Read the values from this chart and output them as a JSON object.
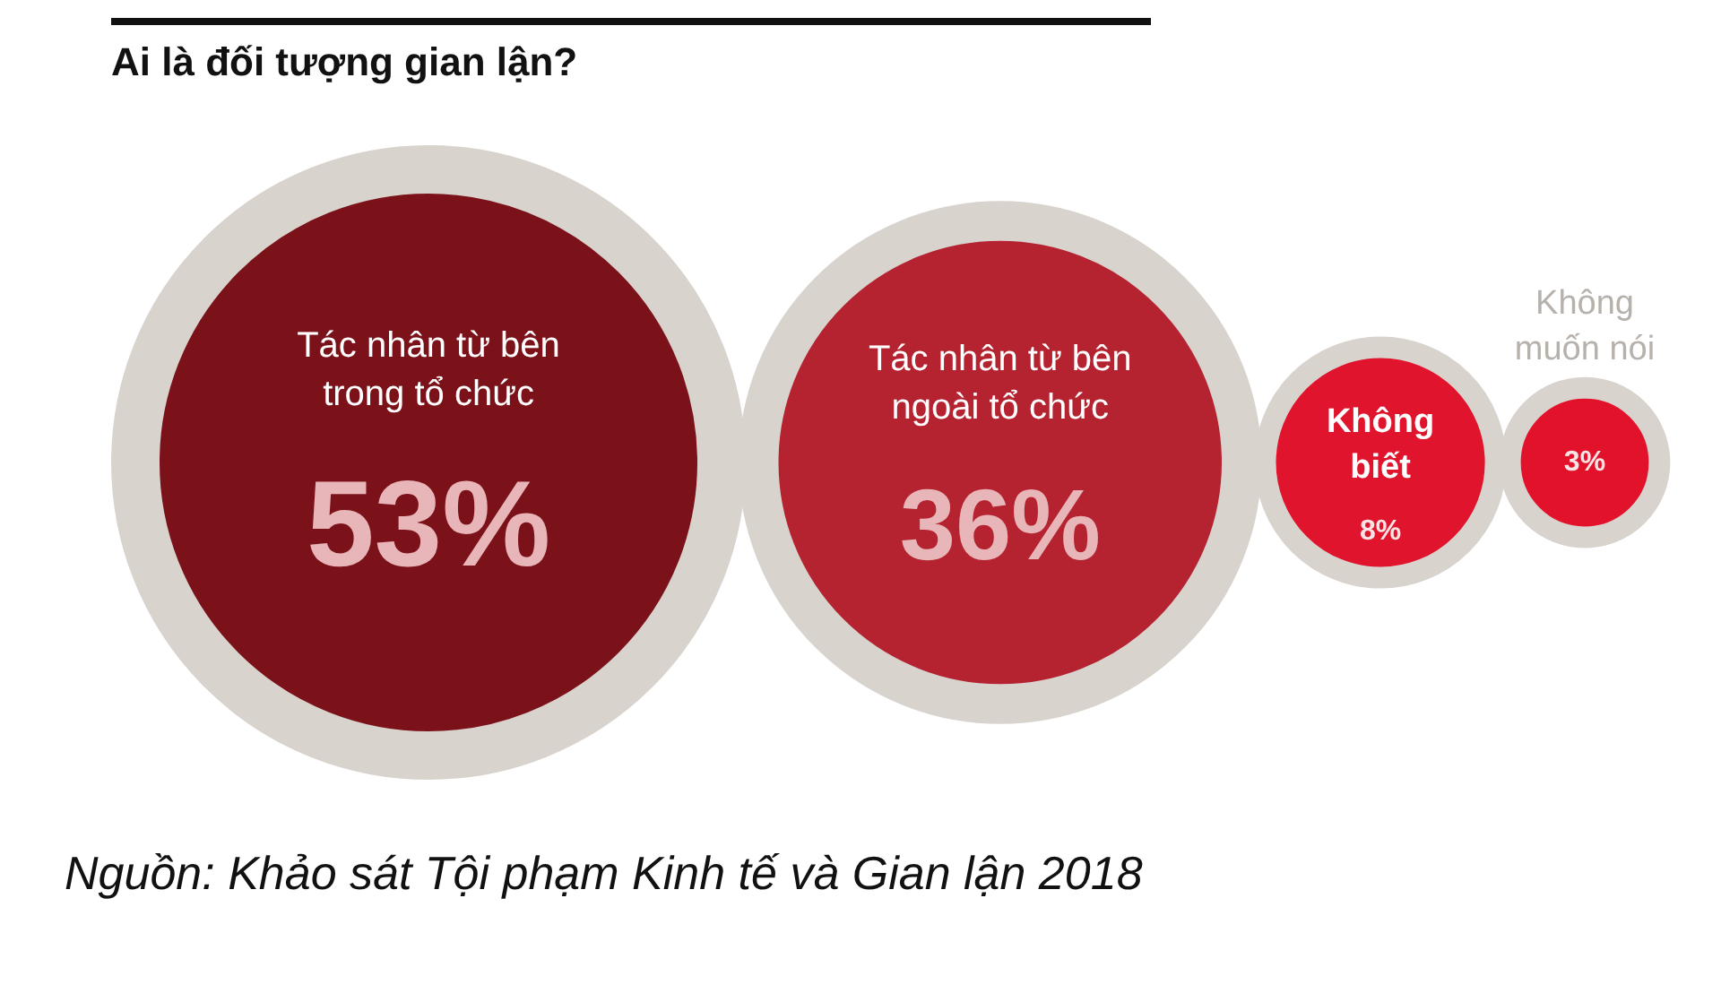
{
  "chart_data": {
    "type": "other",
    "title": "Ai là đối tượng gian lận?",
    "categories": [
      "Tác nhân từ bên trong tổ chức",
      "Tác nhân từ bên ngoài tổ chức",
      "Không biết",
      "Không muốn nói"
    ],
    "values": [
      53,
      36,
      8,
      3
    ],
    "value_labels": [
      "53%",
      "36%",
      "8%",
      "3%"
    ],
    "colors": [
      "#7b1119",
      "#b52230",
      "#e0142c",
      "#e3122b"
    ],
    "annotations": [
      "Nguồn: Khảo sát Tội phạm Kinh tế và Gian lận 2018"
    ]
  }
}
